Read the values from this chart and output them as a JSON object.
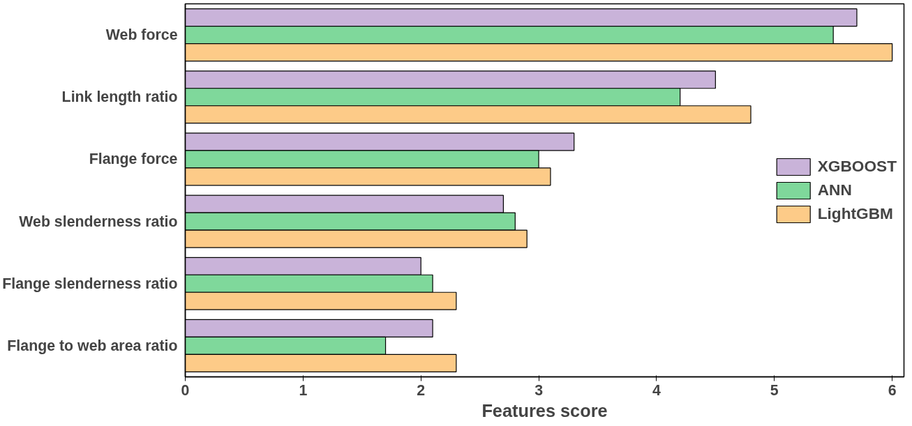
{
  "chart_data": {
    "type": "bar",
    "orientation": "horizontal",
    "xlabel": "Features score",
    "categories": [
      "Web force",
      "Link length ratio",
      "Flange force",
      "Web slenderness ratio",
      "Flange slenderness ratio",
      "Flange to web area ratio"
    ],
    "series": [
      {
        "name": "XGBOOST",
        "color": "#c9b3d9",
        "values": [
          5.7,
          4.5,
          3.3,
          2.7,
          2.0,
          2.1
        ]
      },
      {
        "name": "ANN",
        "color": "#7fd89b",
        "values": [
          5.5,
          4.2,
          3.0,
          2.8,
          2.1,
          1.7
        ]
      },
      {
        "name": "LightGBM",
        "color": "#fdcb88",
        "values": [
          6.0,
          4.8,
          3.1,
          2.9,
          2.3,
          2.3
        ]
      }
    ],
    "xlim": [
      0,
      6.1
    ],
    "xticks": [
      0,
      1,
      2,
      3,
      4,
      5,
      6
    ],
    "grid": false,
    "legend": "right"
  }
}
